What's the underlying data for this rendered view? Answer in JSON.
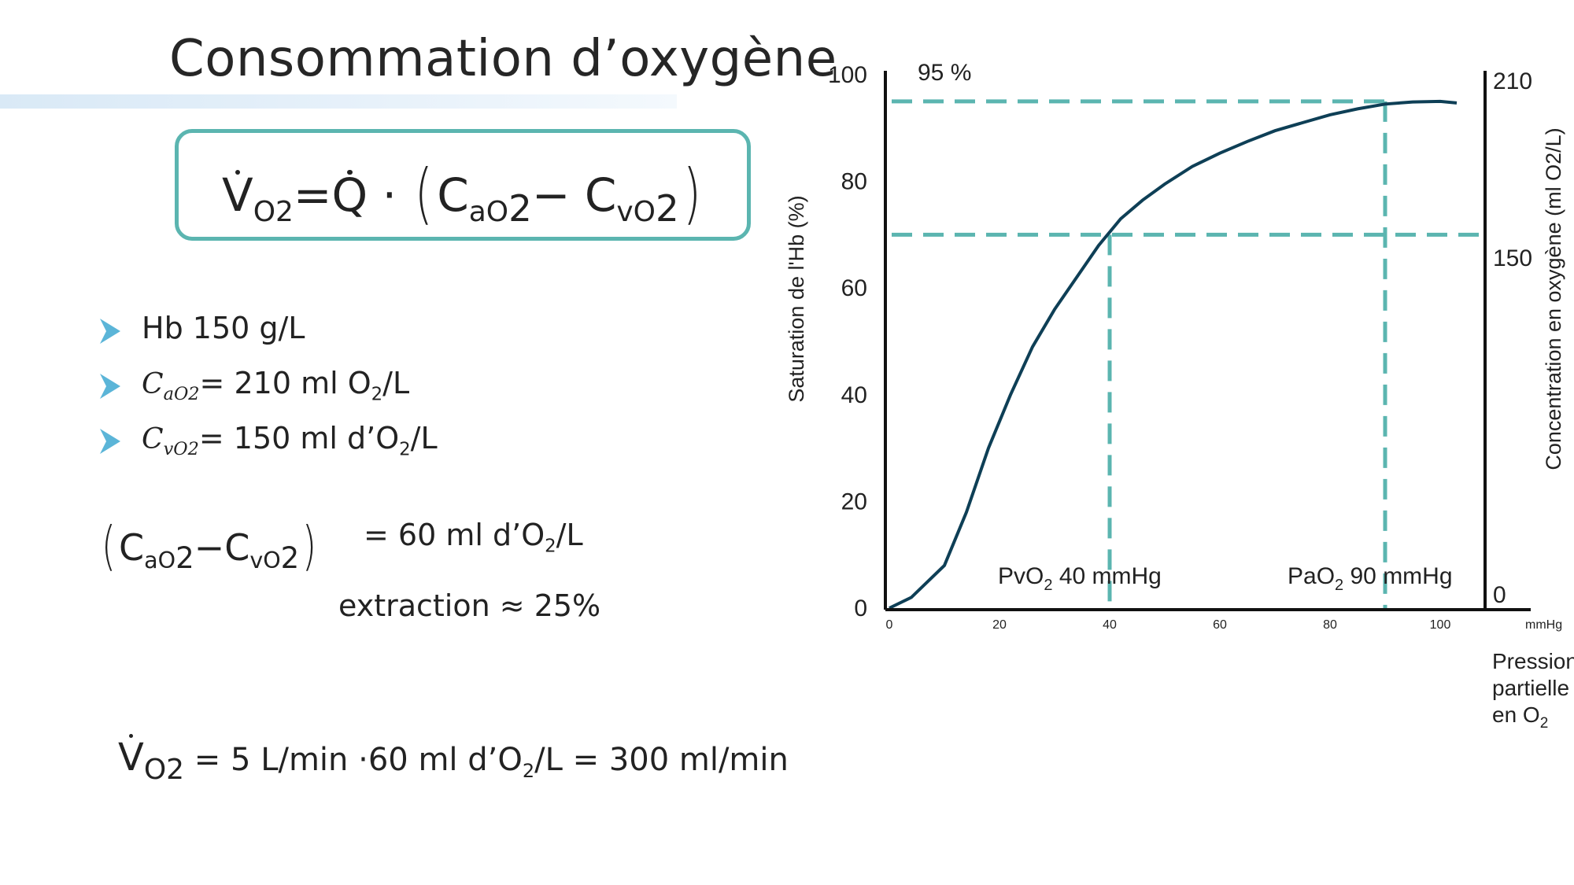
{
  "slide": {
    "title": "Consommation d’oxygène",
    "formula": {
      "lhs_letter": "V",
      "lhs_sub": "O2",
      "eq": "=",
      "q_letter": "Q",
      "dot_op": "·",
      "ca_c": "C",
      "ca_sub": "aO",
      "ca_sub2": "2",
      "minus": "−",
      "cv_c": "C",
      "cv_sub": "vO",
      "cv_sub2": "2"
    },
    "bullets": [
      {
        "text": "Hb 150 g/L"
      },
      {
        "sym": "C",
        "sym_sub": "aO",
        "sym_sub2": "2",
        "text": "= 210  ml O",
        "sub": "2",
        "tail": "/L"
      },
      {
        "sym": "C",
        "sym_sub": "vO",
        "sym_sub2": "2",
        "text": "= 150 ml d’O",
        "sub": "2",
        "tail": "/L"
      }
    ],
    "diff": {
      "ca_c": "C",
      "ca_sub": "aO",
      "ca_sub2": "2",
      "minus": "−",
      "cv_c": "C",
      "cv_sub": "vO",
      "cv_sub2": "2",
      "value": "= 60 ml d’O",
      "value_sub": "2",
      "value_tail": "/L",
      "extraction": "extraction ≈ 25%"
    },
    "result": {
      "letter": "V",
      "sub": "O2",
      "text1": " = 5 L/min ·60 ml d’O",
      "text_sub": "2",
      "text2": "/L = 300 ml/min"
    }
  },
  "colors": {
    "accent_teal": "#5bb5b0",
    "curve": "#0e3f56",
    "bullet_arrow": "#5bb5d8",
    "text": "#222222"
  },
  "chart_data": {
    "type": "line",
    "series": [
      {
        "values_xy": [
          [
            0,
            0
          ],
          [
            4,
            2
          ],
          [
            8,
            6
          ],
          [
            10,
            8
          ],
          [
            14,
            18
          ],
          [
            18,
            30
          ],
          [
            22,
            40
          ],
          [
            26,
            49
          ],
          [
            30,
            56
          ],
          [
            34,
            62
          ],
          [
            38,
            68
          ],
          [
            42,
            73
          ],
          [
            46,
            76.5
          ],
          [
            50,
            79.5
          ],
          [
            55,
            82.8
          ],
          [
            60,
            85.3
          ],
          [
            65,
            87.5
          ],
          [
            70,
            89.5
          ],
          [
            75,
            91
          ],
          [
            80,
            92.5
          ],
          [
            85,
            93.6
          ],
          [
            90,
            94.5
          ],
          [
            95,
            94.9
          ],
          [
            100,
            95
          ],
          [
            103,
            94.7
          ]
        ]
      }
    ],
    "y_left": {
      "label": "Saturation de l'Hb (%)",
      "ticks": [
        "0",
        "20",
        "40",
        "60",
        "80",
        "100"
      ],
      "lim": [
        0,
        100
      ]
    },
    "y_right": {
      "label": "Concentration en oxygène (ml O2/L)",
      "ticks": [
        "0",
        "150",
        "210"
      ]
    },
    "x": {
      "ticks": [
        "0",
        "20",
        "40",
        "60",
        "80",
        "100"
      ],
      "unit": "mmHg",
      "lim": [
        0,
        110
      ]
    },
    "x_label_lines": [
      "Pression",
      "partielle",
      "en O"
    ],
    "x_label_sub": "2",
    "annotations": {
      "top_label": "95 %",
      "pvo2_text": "PvO",
      "pvo2_sub": "2",
      "pvo2_tail": " 40 mmHg",
      "pao2_text": "PaO",
      "pao2_sub": "2",
      "pao2_tail": " 90 mmHg"
    },
    "reference_lines": {
      "h": [
        95,
        70
      ],
      "v": [
        40,
        90
      ]
    }
  }
}
